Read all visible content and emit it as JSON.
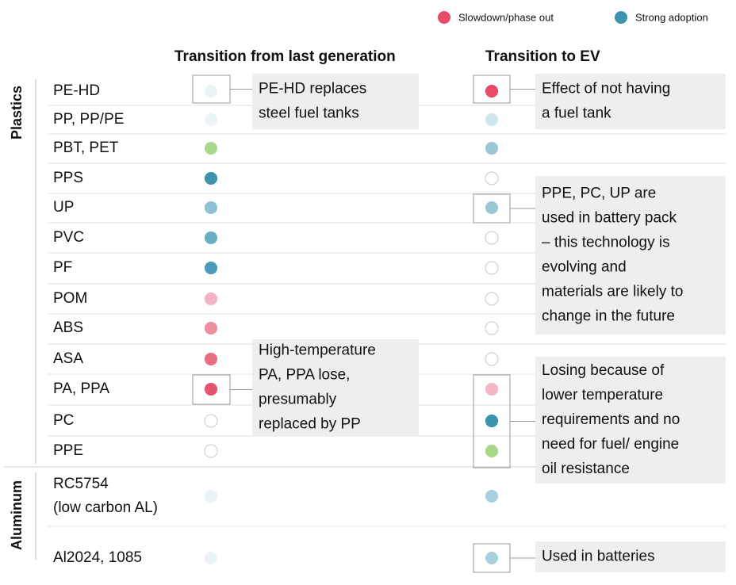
{
  "legend": [
    {
      "label": "Slowdown/phase out",
      "color": "#e84a67"
    },
    {
      "label": "Strong adoption",
      "color": "#3c93ad"
    }
  ],
  "columns": [
    "Transition from last generation",
    "Transition to EV"
  ],
  "groups": [
    {
      "name": "Plastics",
      "rows": [
        {
          "label": [
            "PE-HD"
          ],
          "from": "#eaf3f5",
          "to": "#e84a67"
        },
        {
          "label": [
            "PP, PP/PE"
          ],
          "from": "#eaf3f5",
          "to": "#cfe6ed"
        },
        {
          "label": [
            "PBT, PET"
          ],
          "from": "#a8d88a",
          "to": "#99c7d6"
        },
        {
          "label": [
            "PPS"
          ],
          "from": "#3c93ad",
          "to": "none"
        },
        {
          "label": [
            "UP"
          ],
          "from": "#8ec1d2",
          "to": "#99c7d6"
        },
        {
          "label": [
            "PVC"
          ],
          "from": "#6aaec4",
          "to": "none"
        },
        {
          "label": [
            "PF"
          ],
          "from": "#4a9db8",
          "to": "none"
        },
        {
          "label": [
            "POM"
          ],
          "from": "#f4b3c1",
          "to": "none"
        },
        {
          "label": [
            "ABS"
          ],
          "from": "#ee8fa0",
          "to": "none"
        },
        {
          "label": [
            "ASA"
          ],
          "from": "#e86d83",
          "to": "none"
        },
        {
          "label": [
            "PA, PPA"
          ],
          "from": "#e65470",
          "to": "#f4b7c4"
        },
        {
          "label": [
            "PC"
          ],
          "from": "none",
          "to": "#3c93ad"
        },
        {
          "label": [
            "PPE"
          ],
          "from": "none",
          "to": "#a8d88a"
        }
      ]
    },
    {
      "name": "Aluminum",
      "rows": [
        {
          "label": [
            "RC5754",
            "(low carbon AL)"
          ],
          "from": "#eaf3f5",
          "to": "#a9d0dd"
        },
        {
          "label": [
            "Al2024, 1085"
          ],
          "from": "#eaf3f5",
          "to": "#a9d0dd"
        }
      ]
    }
  ],
  "annotations": [
    {
      "lines": [
        "PE-HD replaces",
        "steel fuel tanks"
      ]
    },
    {
      "lines": [
        "Effect of not having",
        "a fuel tank"
      ]
    },
    {
      "lines": [
        "PPE, PC, UP are",
        "used in battery pack",
        "– this technology is",
        "evolving and",
        "materials are likely to",
        "change in the future"
      ]
    },
    {
      "lines": [
        "High-temperature",
        "PA, PPA lose,",
        "presumably",
        "replaced by PP"
      ]
    },
    {
      "lines": [
        "Losing because of",
        "lower temperature",
        "requirements and no",
        "need for fuel/ engine",
        "oil resistance"
      ]
    },
    {
      "lines": [
        "Used in batteries"
      ]
    }
  ]
}
